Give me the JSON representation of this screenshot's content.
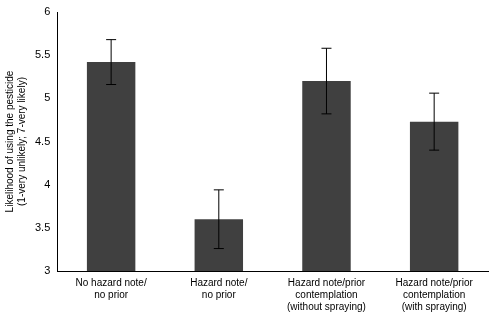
{
  "chart_data": {
    "type": "bar",
    "y_label": "Likelihood of using the pesticide\n(1-very unlikely; 7-very likely)",
    "categories": [
      "No hazard note/\nno prior",
      "Hazard note/\nno prior",
      "Hazard note/prior\ncontemplation\n(without spraying)",
      "Hazard note/prior\ncontemplation\n(with spraying)"
    ],
    "values": [
      5.42,
      3.6,
      5.2,
      4.73
    ],
    "errors": [
      0.26,
      0.34,
      0.38,
      0.33
    ],
    "color": "#404040",
    "ylim": [
      3,
      6
    ],
    "yticks": [
      3,
      3.5,
      4,
      4.5,
      5,
      5.5,
      6
    ],
    "grid": false
  }
}
